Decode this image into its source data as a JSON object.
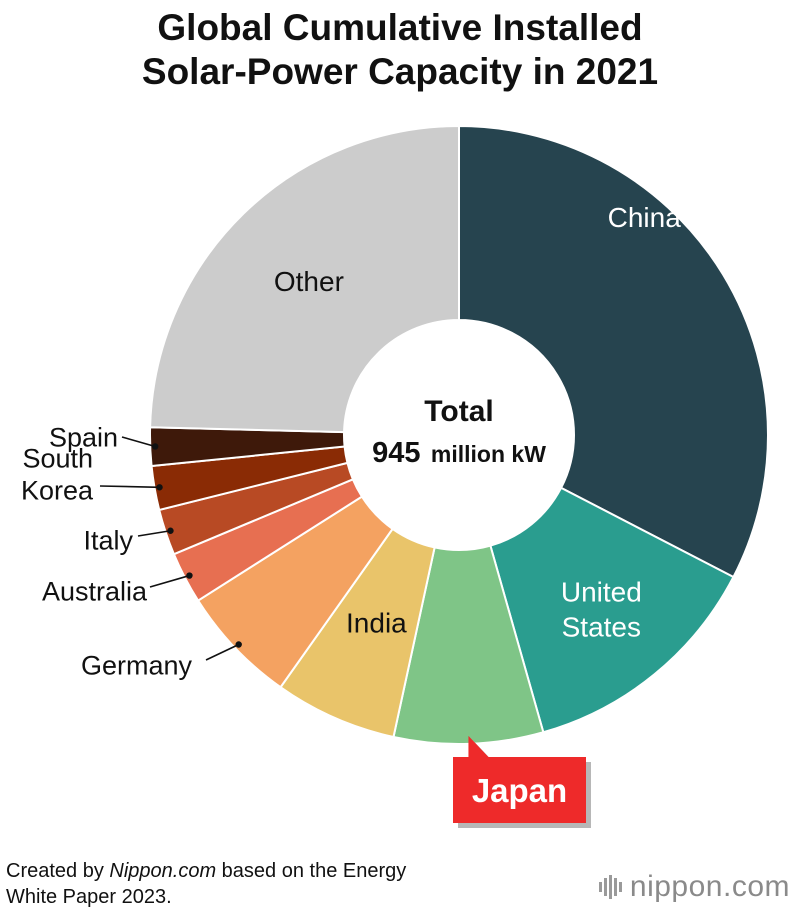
{
  "title_lines": [
    "Global Cumulative Installed",
    "Solar-Power Capacity in 2021"
  ],
  "chart_data": {
    "type": "pie",
    "title": "Global Cumulative Installed Solar-Power Capacity in 2021",
    "center_label": {
      "line1": "Total",
      "value": "945",
      "unit": "million kW"
    },
    "total_million_kw": 945,
    "highlight": "Japan",
    "slices": [
      {
        "name": "China",
        "label_lines": [
          "China"
        ],
        "share_pct": 32.6,
        "color": "#26444f",
        "text_color": "#ffffff"
      },
      {
        "name": "United States",
        "label_lines": [
          "United",
          "States"
        ],
        "share_pct": 13.0,
        "color": "#2a9d8f",
        "text_color": "#ffffff"
      },
      {
        "name": "Japan",
        "label_lines": [
          "Japan"
        ],
        "share_pct": 7.8,
        "color": "#7fc587",
        "text_color": "#ffffff"
      },
      {
        "name": "India",
        "label_lines": [
          "India"
        ],
        "share_pct": 6.4,
        "color": "#e9c46a",
        "text_color": "#111111"
      },
      {
        "name": "Germany",
        "label_lines": [
          "Germany"
        ],
        "share_pct": 6.2,
        "color": "#f4a261",
        "text_color": "#111111"
      },
      {
        "name": "Australia",
        "label_lines": [
          "Australia"
        ],
        "share_pct": 2.7,
        "color": "#e76f51",
        "text_color": "#111111"
      },
      {
        "name": "Italy",
        "label_lines": [
          "Italy"
        ],
        "share_pct": 2.4,
        "color": "#b84a24",
        "text_color": "#111111"
      },
      {
        "name": "South Korea",
        "label_lines": [
          "South",
          "Korea"
        ],
        "share_pct": 2.3,
        "color": "#8a2b05",
        "text_color": "#111111"
      },
      {
        "name": "Spain",
        "label_lines": [
          "Spain"
        ],
        "share_pct": 2.0,
        "color": "#3e190a",
        "text_color": "#111111"
      },
      {
        "name": "Other",
        "label_lines": [
          "Other"
        ],
        "share_pct": 24.6,
        "color": "#cccccc",
        "text_color": "#111111"
      }
    ]
  },
  "footer": {
    "prefix": "Created by ",
    "source_name": "Nippon.com",
    "suffix": " based on the Energy",
    "line2": "White Paper 2023."
  },
  "brand": {
    "name": "nippon",
    "suffix": ".com"
  },
  "colors": {
    "highlight_box": "#ee2a2a",
    "highlight_shadow": "#b7b7b7"
  }
}
